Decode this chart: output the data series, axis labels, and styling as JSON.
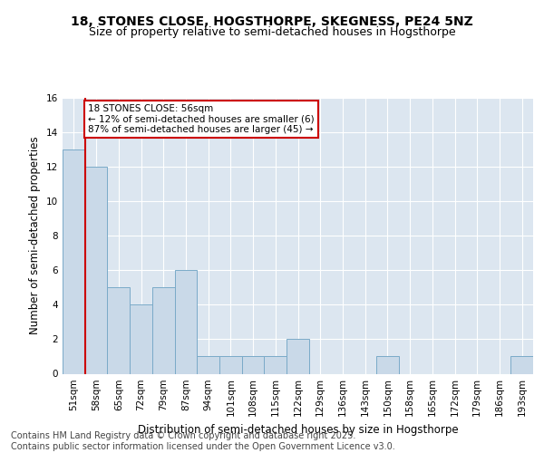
{
  "title1": "18, STONES CLOSE, HOGSTHORPE, SKEGNESS, PE24 5NZ",
  "title2": "Size of property relative to semi-detached houses in Hogsthorpe",
  "xlabel": "Distribution of semi-detached houses by size in Hogsthorpe",
  "ylabel": "Number of semi-detached properties",
  "categories": [
    "51sqm",
    "58sqm",
    "65sqm",
    "72sqm",
    "79sqm",
    "87sqm",
    "94sqm",
    "101sqm",
    "108sqm",
    "115sqm",
    "122sqm",
    "129sqm",
    "136sqm",
    "143sqm",
    "150sqm",
    "158sqm",
    "165sqm",
    "172sqm",
    "179sqm",
    "186sqm",
    "193sqm"
  ],
  "values": [
    13,
    12,
    5,
    4,
    5,
    6,
    1,
    1,
    1,
    1,
    2,
    0,
    0,
    0,
    1,
    0,
    0,
    0,
    0,
    0,
    1
  ],
  "bar_color": "#c9d9e8",
  "bar_edge_color": "#7aaac8",
  "highlight_line_color": "#cc0000",
  "highlight_index": 1,
  "annotation_text": "18 STONES CLOSE: 56sqm\n← 12% of semi-detached houses are smaller (6)\n87% of semi-detached houses are larger (45) →",
  "annotation_box_color": "#cc0000",
  "ylim": [
    0,
    16
  ],
  "yticks": [
    0,
    2,
    4,
    6,
    8,
    10,
    12,
    14,
    16
  ],
  "fig_bg_color": "#ffffff",
  "plot_bg_color": "#dce6f0",
  "grid_color": "#ffffff",
  "title_fontsize": 10,
  "subtitle_fontsize": 9,
  "axis_label_fontsize": 8.5,
  "tick_fontsize": 7.5,
  "footer_fontsize": 7,
  "footer": "Contains HM Land Registry data © Crown copyright and database right 2025.\nContains public sector information licensed under the Open Government Licence v3.0."
}
